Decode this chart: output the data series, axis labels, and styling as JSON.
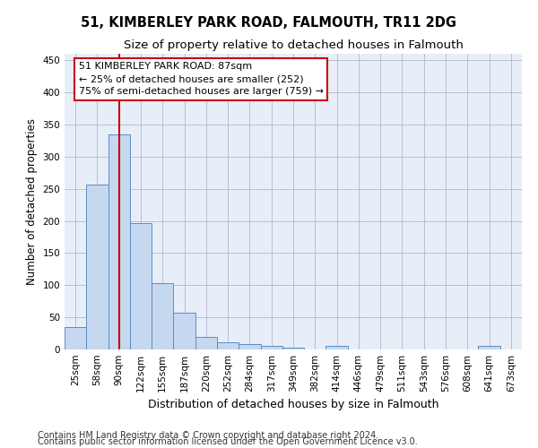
{
  "title": "51, KIMBERLEY PARK ROAD, FALMOUTH, TR11 2DG",
  "subtitle": "Size of property relative to detached houses in Falmouth",
  "xlabel": "Distribution of detached houses by size in Falmouth",
  "ylabel": "Number of detached properties",
  "footnote1": "Contains HM Land Registry data © Crown copyright and database right 2024.",
  "footnote2": "Contains public sector information licensed under the Open Government Licence v3.0.",
  "categories": [
    "25sqm",
    "58sqm",
    "90sqm",
    "122sqm",
    "155sqm",
    "187sqm",
    "220sqm",
    "252sqm",
    "284sqm",
    "317sqm",
    "349sqm",
    "382sqm",
    "414sqm",
    "446sqm",
    "479sqm",
    "511sqm",
    "543sqm",
    "576sqm",
    "608sqm",
    "641sqm",
    "673sqm"
  ],
  "values": [
    35,
    256,
    335,
    197,
    103,
    57,
    19,
    11,
    8,
    6,
    3,
    0,
    5,
    0,
    0,
    0,
    0,
    0,
    0,
    5,
    0
  ],
  "bar_color": "#c5d8f0",
  "bar_edge_color": "#5b8ec4",
  "red_line_index": 2,
  "red_line_color": "#cc0000",
  "annotation_line1": "51 KIMBERLEY PARK ROAD: 87sqm",
  "annotation_line2": "← 25% of detached houses are smaller (252)",
  "annotation_line3": "75% of semi-detached houses are larger (759) →",
  "annotation_box_facecolor": "#ffffff",
  "annotation_box_edgecolor": "#cc0000",
  "ylim": [
    0,
    460
  ],
  "yticks": [
    0,
    50,
    100,
    150,
    200,
    250,
    300,
    350,
    400,
    450
  ],
  "bg_color": "#e8eef8",
  "grid_color": "#b0b8d0",
  "title_fontsize": 10.5,
  "subtitle_fontsize": 9.5,
  "xlabel_fontsize": 9,
  "ylabel_fontsize": 8.5,
  "tick_fontsize": 7.5,
  "annotation_fontsize": 8,
  "footnote_fontsize": 7
}
